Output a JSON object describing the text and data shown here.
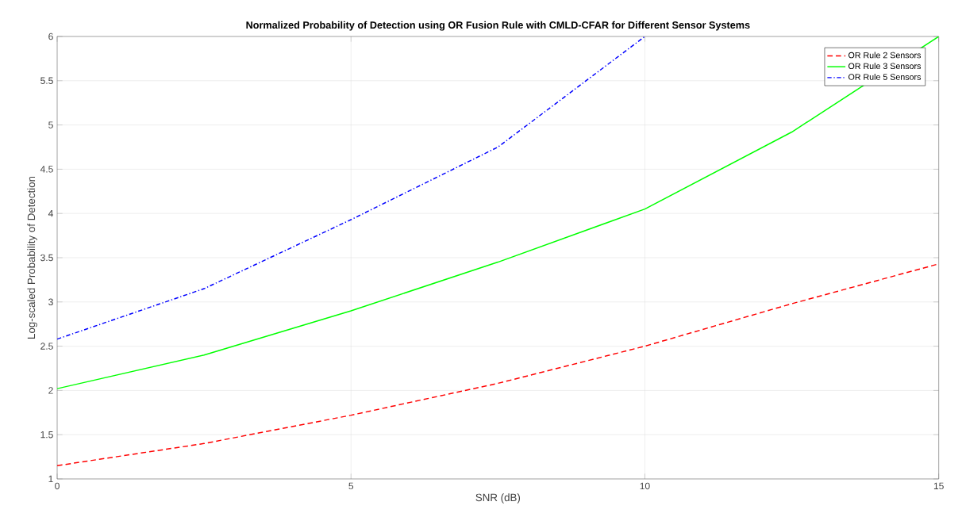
{
  "chart_data": {
    "type": "line",
    "title": "Normalized Probability of Detection using OR Fusion Rule with CMLD-CFAR for Different Sensor Systems",
    "xlabel": "SNR (dB)",
    "ylabel": "Log-scaled Probability of Detection",
    "x": [
      0,
      2.5,
      5,
      7.5,
      10,
      12.5,
      15
    ],
    "series": [
      {
        "name": "OR Rule 2 Sensors",
        "color": "#ff0000",
        "line_style": "dashed",
        "values": [
          1.15,
          1.4,
          1.72,
          2.08,
          2.5,
          2.98,
          3.43
        ]
      },
      {
        "name": "OR Rule 3 Sensors",
        "color": "#00ff00",
        "line_style": "solid",
        "values": [
          2.02,
          2.4,
          2.9,
          3.45,
          4.05,
          4.92,
          6.0
        ]
      },
      {
        "name": "OR Rule 5 Sensors",
        "color": "#0000ff",
        "line_style": "dashdot",
        "values": [
          2.58,
          3.15,
          3.93,
          4.75,
          6.0,
          null,
          null
        ]
      }
    ],
    "xlim": [
      0,
      15
    ],
    "ylim": [
      1,
      6
    ],
    "xticks": [
      0,
      5,
      10,
      15
    ],
    "yticks": [
      1,
      1.5,
      2,
      2.5,
      3,
      3.5,
      4,
      4.5,
      5,
      5.5,
      6
    ],
    "grid": true,
    "legend": "top right",
    "marker": "none"
  }
}
